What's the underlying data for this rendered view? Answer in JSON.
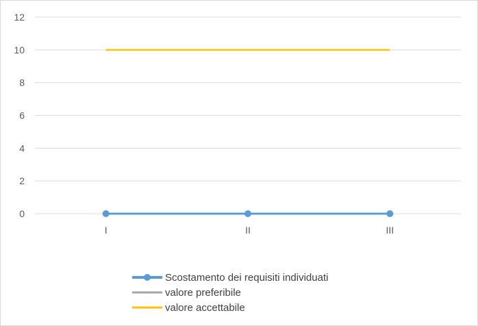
{
  "chart_data": {
    "type": "line",
    "categories": [
      "I",
      "II",
      "III"
    ],
    "ylim": [
      0,
      12
    ],
    "yticks": [
      0,
      2,
      4,
      6,
      8,
      10,
      12
    ],
    "grid": true,
    "legend_position": "bottom",
    "series": [
      {
        "name": "Scostamento dei requisiti individuati",
        "values": [
          0,
          0,
          0
        ],
        "color": "#5b9bd5",
        "markers": true
      },
      {
        "name": "valore preferibile",
        "values": [
          0,
          0,
          0
        ],
        "color": "#a5a5a5",
        "markers": false
      },
      {
        "name": "valore accettabile",
        "values": [
          10,
          10,
          10
        ],
        "color": "#ffc000",
        "markers": false
      }
    ]
  }
}
